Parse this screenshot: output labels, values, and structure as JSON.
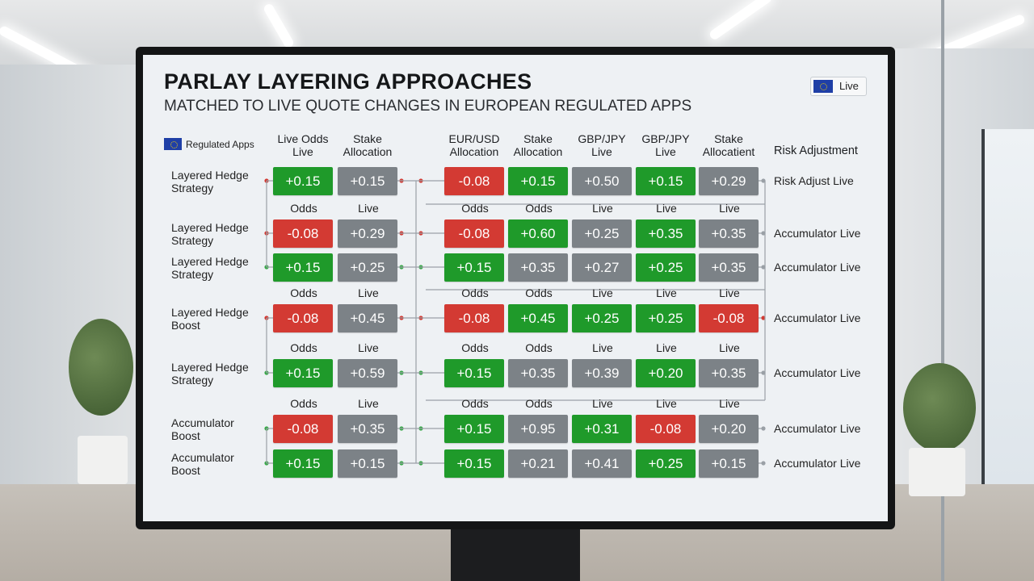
{
  "header": {
    "title": "PARLAY LAYERING APPROACHES",
    "subtitle": "MATCHED TO LIVE QUOTE CHANGES IN EUROPEAN REGULATED APPS",
    "live_badge": "Live",
    "legend_label": "Regulated Apps"
  },
  "colors": {
    "up": "#1f9a2a",
    "down": "#d33a33",
    "flat": "#7c8287",
    "connector": "#3aa84a"
  },
  "columns": [
    [
      "Live Odds",
      "Live"
    ],
    [
      "Stake",
      "Allocation"
    ],
    [
      "EUR/USD",
      "Allocation"
    ],
    [
      "Stake",
      "Allocation"
    ],
    [
      "GBP/JPY",
      "Live"
    ],
    [
      "GBP/JPY",
      "Live"
    ],
    [
      "Stake",
      "Allocatient"
    ]
  ],
  "risk_header": "Risk Adjustment",
  "rows": [
    {
      "label": [
        "Layered Hedge",
        "Strategy"
      ],
      "sub": null,
      "risk": "Risk Adjust Live",
      "cells": [
        {
          "v": "+0.15",
          "s": "up"
        },
        {
          "v": "+0.15",
          "s": "flat"
        },
        {
          "v": "-0.08",
          "s": "down"
        },
        {
          "v": "+0.15",
          "s": "up"
        },
        {
          "v": "+0.50",
          "s": "flat"
        },
        {
          "v": "+0.15",
          "s": "up"
        },
        {
          "v": "+0.29",
          "s": "flat"
        }
      ]
    },
    {
      "label": [
        "Layered Hedge",
        "Strategy"
      ],
      "sub": [
        "Odds",
        "Live",
        "Odds",
        "Odds",
        "Live",
        "Live",
        "Live"
      ],
      "risk": "Accumulator Live",
      "cells": [
        {
          "v": "-0.08",
          "s": "down"
        },
        {
          "v": "+0.29",
          "s": "flat"
        },
        {
          "v": "-0.08",
          "s": "down"
        },
        {
          "v": "+0.60",
          "s": "up"
        },
        {
          "v": "+0.25",
          "s": "flat"
        },
        {
          "v": "+0.35",
          "s": "up"
        },
        {
          "v": "+0.35",
          "s": "flat"
        }
      ]
    },
    {
      "label": [
        "Layered Hedge",
        "Strategy"
      ],
      "sub": null,
      "risk": "Accumulator Live",
      "cells": [
        {
          "v": "+0.15",
          "s": "up"
        },
        {
          "v": "+0.25",
          "s": "flat"
        },
        {
          "v": "+0.15",
          "s": "up"
        },
        {
          "v": "+0.35",
          "s": "flat"
        },
        {
          "v": "+0.27",
          "s": "flat"
        },
        {
          "v": "+0.25",
          "s": "up"
        },
        {
          "v": "+0.35",
          "s": "flat"
        }
      ]
    },
    {
      "label": [
        "Layered Hedge",
        "Boost"
      ],
      "sub": [
        "Odds",
        "Live",
        "Odds",
        "Odds",
        "Live",
        "Live",
        "Live"
      ],
      "risk": "Accumulator Live",
      "cells": [
        {
          "v": "-0.08",
          "s": "down"
        },
        {
          "v": "+0.45",
          "s": "flat"
        },
        {
          "v": "-0.08",
          "s": "down"
        },
        {
          "v": "+0.45",
          "s": "up"
        },
        {
          "v": "+0.25",
          "s": "up"
        },
        {
          "v": "+0.25",
          "s": "up"
        },
        {
          "v": "-0.08",
          "s": "down"
        }
      ]
    },
    {
      "label": [
        "Layered Hedge",
        "Strategy"
      ],
      "sub": [
        "Odds",
        "Live",
        "Odds",
        "Odds",
        "Live",
        "Live",
        "Live"
      ],
      "risk": "Accumulator Live",
      "cells": [
        {
          "v": "+0.15",
          "s": "up"
        },
        {
          "v": "+0.59",
          "s": "flat"
        },
        {
          "v": "+0.15",
          "s": "up"
        },
        {
          "v": "+0.35",
          "s": "flat"
        },
        {
          "v": "+0.39",
          "s": "flat"
        },
        {
          "v": "+0.20",
          "s": "up"
        },
        {
          "v": "+0.35",
          "s": "flat"
        }
      ]
    },
    {
      "label": [
        "Accumulator",
        "Boost"
      ],
      "sub": [
        "Odds",
        "Live",
        "Odds",
        "Odds",
        "Live",
        "Live",
        "Live"
      ],
      "risk": "Accumulator Live",
      "cells": [
        {
          "v": "-0.08",
          "s": "down"
        },
        {
          "v": "+0.35",
          "s": "flat"
        },
        {
          "v": "+0.15",
          "s": "up"
        },
        {
          "v": "+0.95",
          "s": "flat"
        },
        {
          "v": "+0.31",
          "s": "up"
        },
        {
          "v": "-0.08",
          "s": "down"
        },
        {
          "v": "+0.20",
          "s": "flat"
        }
      ]
    },
    {
      "label": [
        "Accumulator",
        "Boost"
      ],
      "sub": null,
      "risk": "Accumulator Live",
      "cells": [
        {
          "v": "+0.15",
          "s": "up"
        },
        {
          "v": "+0.15",
          "s": "flat"
        },
        {
          "v": "+0.15",
          "s": "up"
        },
        {
          "v": "+0.21",
          "s": "flat"
        },
        {
          "v": "+0.41",
          "s": "flat"
        },
        {
          "v": "+0.25",
          "s": "up"
        },
        {
          "v": "+0.15",
          "s": "flat"
        }
      ]
    }
  ]
}
